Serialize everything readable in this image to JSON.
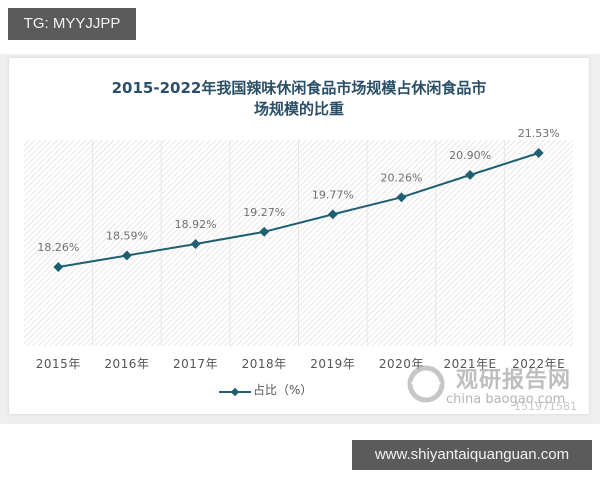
{
  "overlay": {
    "top_tag": "TG: MYYJJPP",
    "bottom_url": "www.shiyantaiquanguan.com"
  },
  "chart": {
    "title_line1": "2015-2022年我国辣味休闲食品市场规模占休闲食品市",
    "title_line2": "场规模的比重",
    "legend_label": "占比（%）",
    "line_color": "#1f5f72",
    "title_color": "#2a4f66",
    "watermark": {
      "brand": "观研报告网",
      "domain": "china  baogao.com",
      "id": "151971581"
    }
  },
  "chart_data": {
    "type": "line",
    "title": "2015-2022年我国辣味休闲食品市场规模占休闲食品市场规模的比重",
    "categories": [
      "2015年",
      "2016年",
      "2017年",
      "2018年",
      "2019年",
      "2020年",
      "2021年E",
      "2022年E"
    ],
    "series": [
      {
        "name": "占比（%）",
        "values": [
          18.26,
          18.59,
          18.92,
          19.27,
          19.77,
          20.26,
          20.9,
          21.53
        ],
        "labels": [
          "18.26%",
          "18.59%",
          "18.92%",
          "19.27%",
          "19.77%",
          "20.26%",
          "20.90%",
          "21.53%"
        ]
      }
    ],
    "xlabel": "",
    "ylabel": "",
    "y_axis_visible": false,
    "grid": "vertical category separators",
    "legend_position": "bottom",
    "marker": "diamond",
    "data_labels": true
  }
}
